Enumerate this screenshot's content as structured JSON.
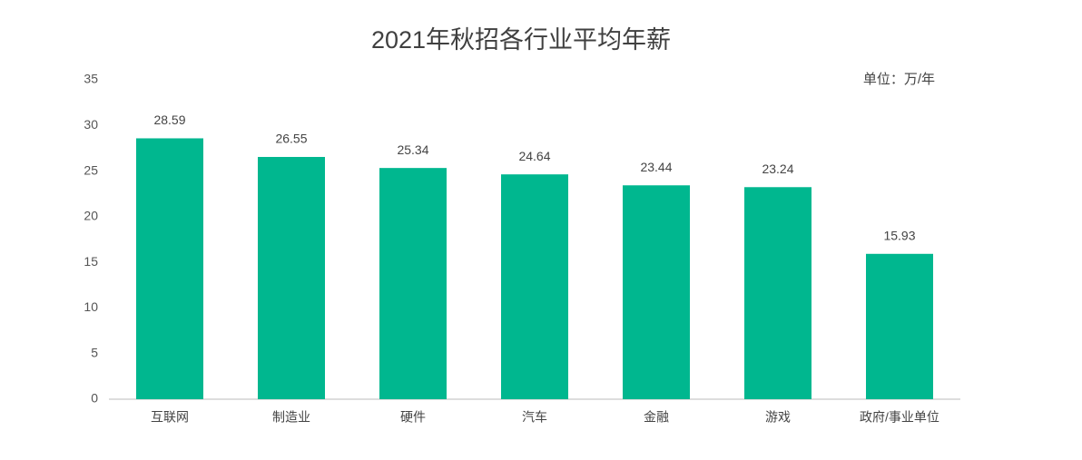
{
  "chart_data": {
    "type": "bar",
    "title": "2021年秋招各行业平均年薪",
    "annotation": "单位：万/年",
    "categories": [
      "互联网",
      "制造业",
      "硬件",
      "汽车",
      "金融",
      "游戏",
      "政府/事业单位"
    ],
    "values": [
      28.59,
      26.55,
      25.34,
      24.64,
      23.44,
      23.24,
      15.93
    ],
    "color": "#00b78f",
    "ylim": [
      0,
      35
    ],
    "yticks": [
      0,
      5,
      10,
      15,
      20,
      25,
      30,
      35
    ],
    "grid": false
  }
}
